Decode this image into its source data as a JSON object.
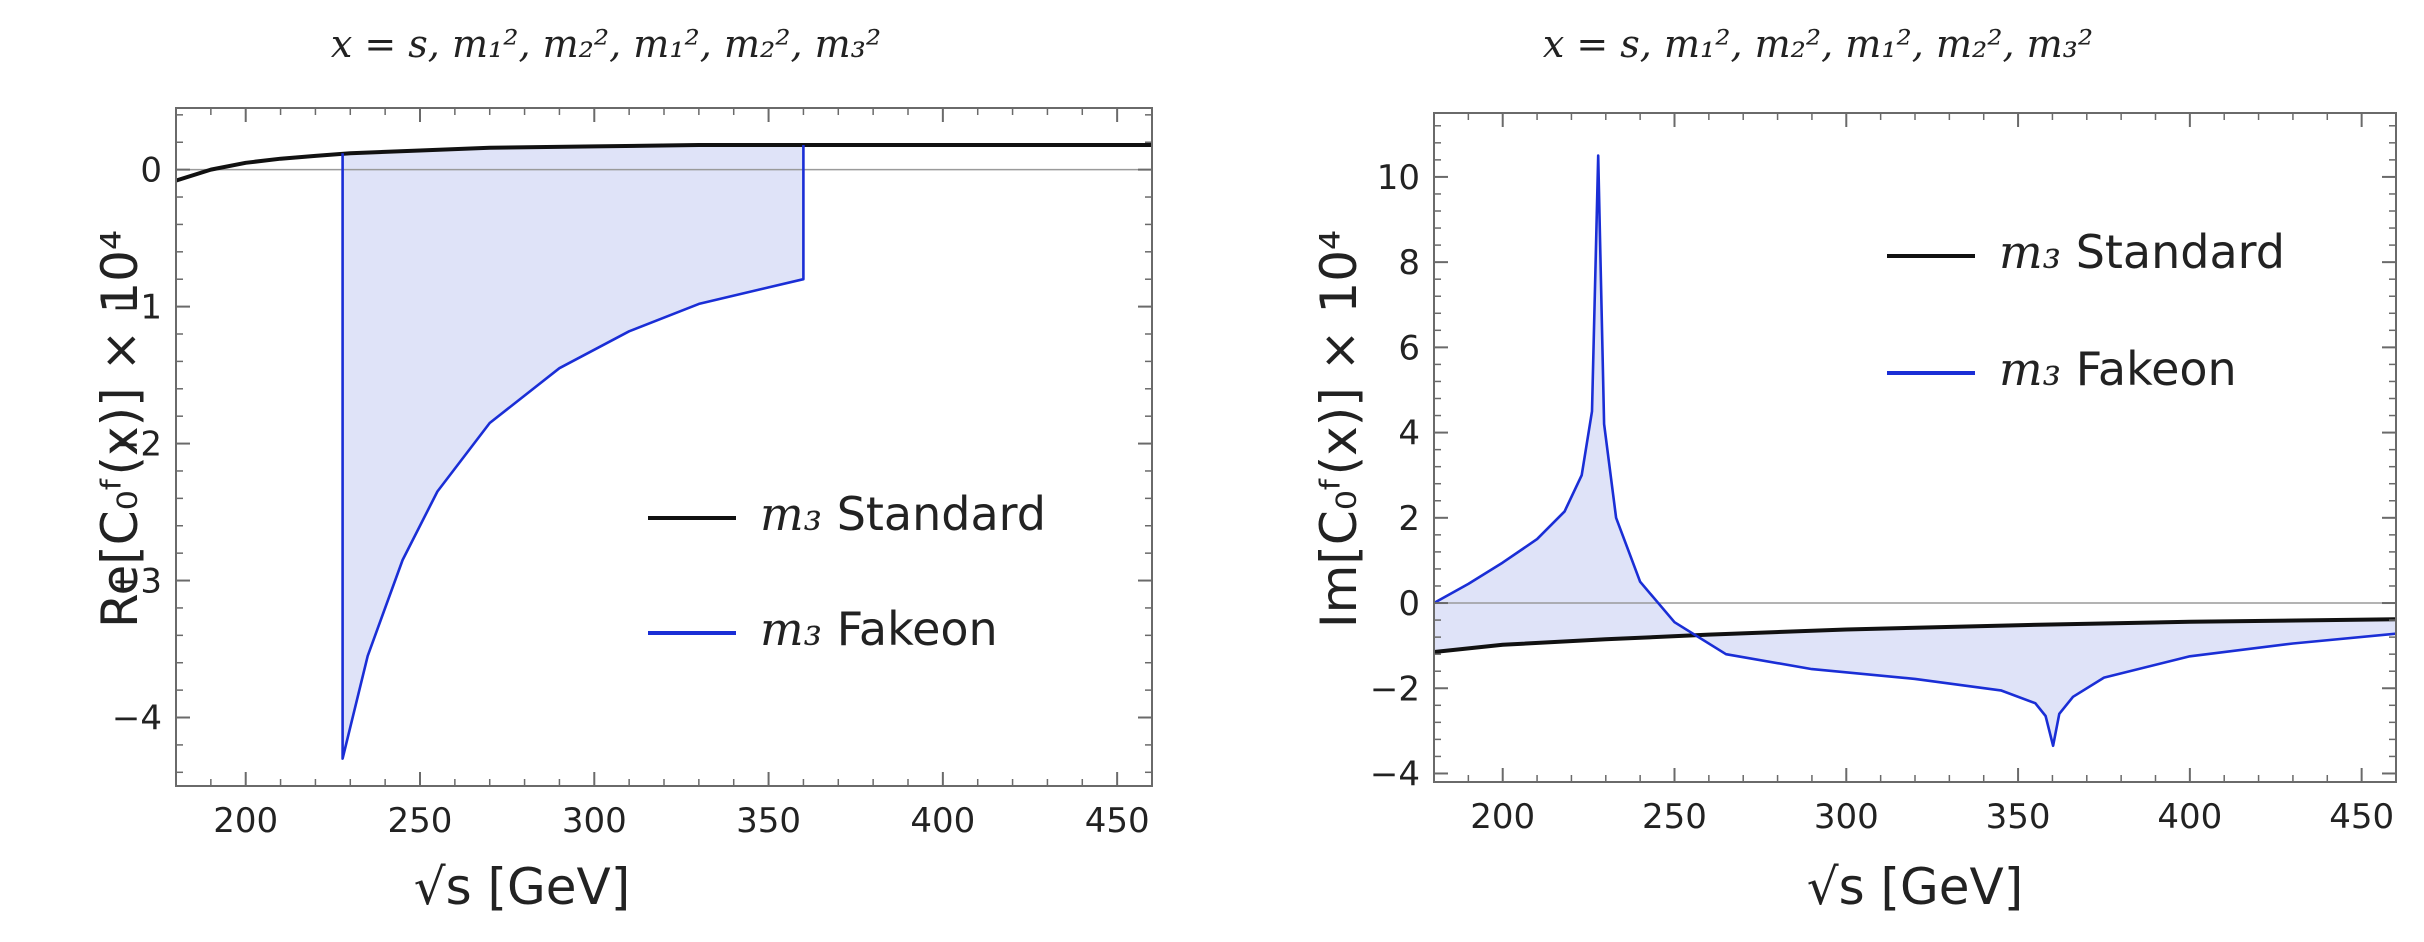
{
  "chart_data": [
    {
      "type": "line",
      "title": "x = s, m₁², m₂², m₁², m₂², m₃²",
      "xlabel": "√s [GeV]",
      "ylabel": "Re[C₀ᶠ(x)] × 10⁴",
      "xlim": [
        180,
        460
      ],
      "ylim": [
        -4.5,
        0.45
      ],
      "xticks": [
        "200",
        "250",
        "300",
        "350",
        "400",
        "450"
      ],
      "yticks": [
        "0",
        "−1",
        "−2",
        "−3",
        "−4"
      ],
      "legend": {
        "position": "center-right",
        "entries": [
          {
            "sym": "m₃",
            "label": "Standard",
            "color": "#111111"
          },
          {
            "sym": "m₃",
            "label": "Fakeon",
            "color": "#1a2ed6"
          }
        ]
      },
      "series": [
        {
          "name": "m₃ Standard",
          "color": "#111111",
          "x": [
            180,
            190,
            200,
            210,
            220,
            230,
            250,
            270,
            300,
            330,
            360,
            390,
            420,
            460
          ],
          "y": [
            -0.08,
            0.0,
            0.05,
            0.08,
            0.1,
            0.12,
            0.14,
            0.16,
            0.17,
            0.18,
            0.18,
            0.18,
            0.18,
            0.18
          ]
        },
        {
          "name": "m₃ Fakeon",
          "color": "#1a2ed6",
          "x": [
            227.8,
            227.8,
            235,
            245,
            255,
            270,
            290,
            310,
            330,
            350,
            360,
            360
          ],
          "y": [
            0.12,
            -4.3,
            -3.55,
            -2.85,
            -2.35,
            -1.85,
            -1.45,
            -1.18,
            -0.98,
            -0.86,
            -0.8,
            0.18
          ]
        }
      ]
    },
    {
      "type": "line",
      "title": "x = s, m₁², m₂², m₁², m₂², m₃²",
      "xlabel": "√s [GeV]",
      "ylabel": "Im[C₀ᶠ(x)] × 10⁴",
      "xlim": [
        180,
        460
      ],
      "ylim": [
        -4.2,
        11.5
      ],
      "xticks": [
        "200",
        "250",
        "300",
        "350",
        "400",
        "450"
      ],
      "yticks": [
        "10",
        "8",
        "6",
        "4",
        "2",
        "0",
        "−2",
        "−4"
      ],
      "legend": {
        "position": "top-right",
        "entries": [
          {
            "sym": "m₃",
            "label": "Standard",
            "color": "#111111"
          },
          {
            "sym": "m₃",
            "label": "Fakeon",
            "color": "#1a2ed6"
          }
        ]
      },
      "series": [
        {
          "name": "m₃ Standard",
          "color": "#111111",
          "x": [
            180,
            200,
            230,
            260,
            300,
            350,
            400,
            460
          ],
          "y": [
            -1.15,
            -0.98,
            -0.85,
            -0.74,
            -0.62,
            -0.52,
            -0.44,
            -0.38
          ]
        },
        {
          "name": "m₃ Fakeon",
          "color": "#1a2ed6",
          "x": [
            180,
            190,
            200,
            210,
            218,
            223,
            226,
            227.8,
            229.5,
            233,
            240,
            250,
            265,
            290,
            320,
            345,
            355,
            358,
            360.2,
            362,
            366,
            375,
            400,
            430,
            460
          ],
          "y": [
            0.0,
            0.45,
            0.95,
            1.5,
            2.15,
            3.0,
            4.5,
            10.5,
            4.2,
            2.0,
            0.5,
            -0.45,
            -1.2,
            -1.55,
            -1.78,
            -2.05,
            -2.35,
            -2.65,
            -3.35,
            -2.6,
            -2.2,
            -1.75,
            -1.25,
            -0.95,
            -0.72
          ]
        }
      ]
    }
  ]
}
